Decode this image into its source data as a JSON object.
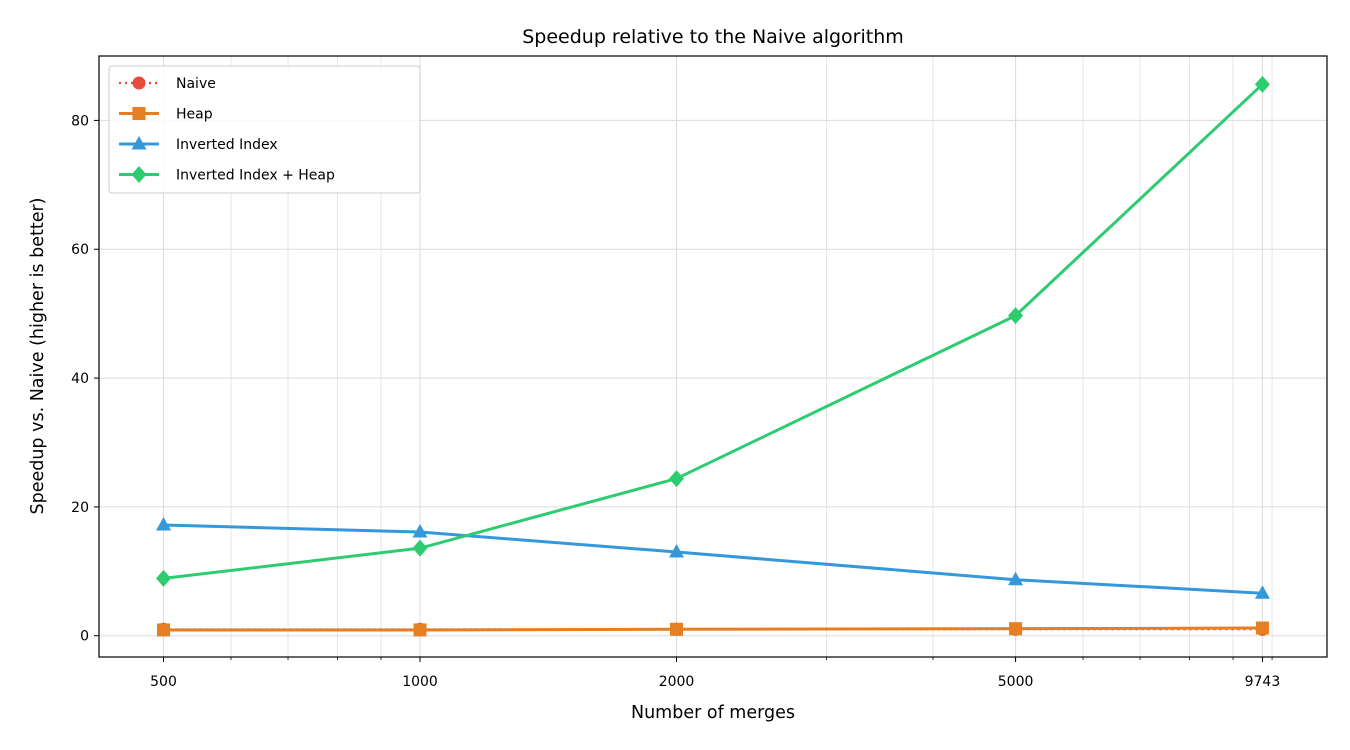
{
  "chart_data": {
    "type": "line",
    "title": "Speedup relative to the Naive algorithm",
    "xlabel": "Number of merges",
    "ylabel": "Speedup vs. Naive  (higher is better)",
    "x_scale": "log",
    "x": [
      500,
      1000,
      2000,
      5000,
      9743
    ],
    "x_tick_labels": [
      "500",
      "1000",
      "2000",
      "5000",
      "9743"
    ],
    "y_ticks": [
      0,
      20,
      40,
      60,
      80
    ],
    "ylim": [
      -3.3,
      90
    ],
    "xlim": [
      420,
      11600
    ],
    "grid": true,
    "legend_position": "upper-left",
    "series": [
      {
        "name": "Naive",
        "values": [
          1.0,
          1.0,
          1.0,
          1.0,
          1.0
        ],
        "color": "#e74c3c",
        "marker": "circle",
        "line_style": "dotted"
      },
      {
        "name": "Heap",
        "values": [
          0.9,
          0.9,
          1.0,
          1.1,
          1.2
        ],
        "color": "#e67e22",
        "marker": "square",
        "line_style": "solid"
      },
      {
        "name": "Inverted Index",
        "values": [
          17.2,
          16.1,
          13.0,
          8.7,
          6.6
        ],
        "color": "#3498db",
        "marker": "triangle",
        "line_style": "solid"
      },
      {
        "name": "Inverted Index + Heap",
        "values": [
          8.9,
          13.6,
          24.4,
          49.7,
          85.6
        ],
        "color": "#2ecc71",
        "marker": "diamond",
        "line_style": "solid"
      }
    ]
  }
}
